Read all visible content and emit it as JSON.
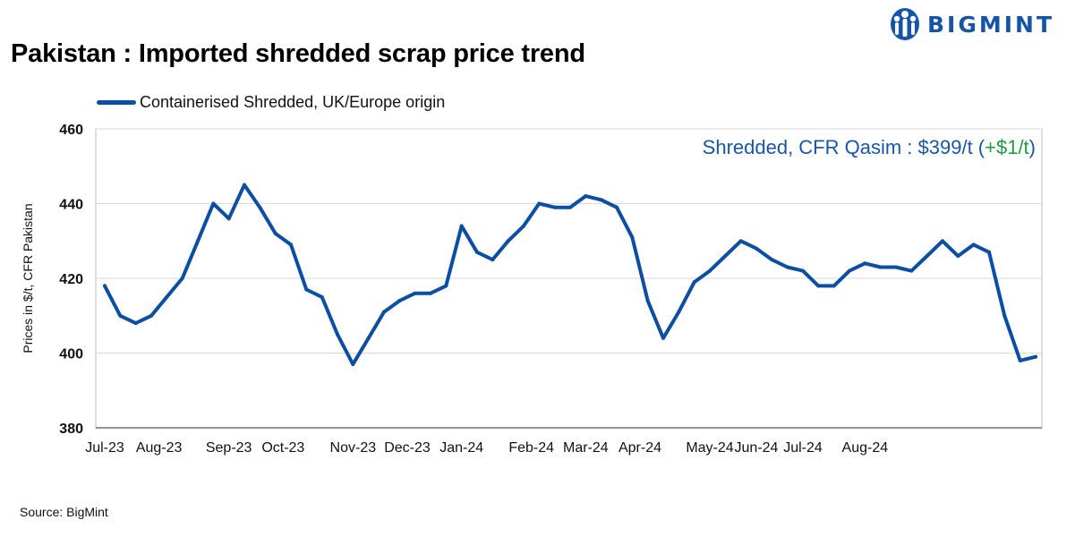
{
  "header": {
    "title": "Pakistan : Imported shredded scrap price trend",
    "brand": "BIGMINT"
  },
  "annotation": {
    "prefix": "Shredded, CFR Qasim : $399/t (",
    "change": "+$1/t",
    "suffix": ")"
  },
  "footer": {
    "source": "Source: BigMint"
  },
  "colors": {
    "line": "#0c4ea3",
    "brand": "#1655a5",
    "annotation": "#1a56a6",
    "positive": "#1c9a46",
    "grid": "#d9d9d9"
  },
  "chart_data": {
    "type": "line",
    "title": "Pakistan : Imported shredded scrap price trend",
    "xlabel": "",
    "ylabel": "Prices in $/t, CFR Pakistan",
    "ylim": [
      380,
      460
    ],
    "yticks": [
      380,
      400,
      420,
      440,
      460
    ],
    "grid": true,
    "legend_position": "top-left",
    "x_ticks": [
      {
        "label": "Jul-23",
        "index": 0
      },
      {
        "label": "Aug-23",
        "index": 3.5
      },
      {
        "label": "Sep-23",
        "index": 8
      },
      {
        "label": "Oct-23",
        "index": 11.5
      },
      {
        "label": "Nov-23",
        "index": 16
      },
      {
        "label": "Dec-23",
        "index": 19.5
      },
      {
        "label": "Jan-24",
        "index": 23
      },
      {
        "label": "Feb-24",
        "index": 27.5
      },
      {
        "label": "Mar-24",
        "index": 31
      },
      {
        "label": "Apr-24",
        "index": 34.5
      },
      {
        "label": "May-24",
        "index": 39
      },
      {
        "label": "Jun-24",
        "index": 42
      },
      {
        "label": "Jul-24",
        "index": 45
      },
      {
        "label": "Aug-24",
        "index": 49
      }
    ],
    "series": [
      {
        "name": "Containerised Shredded, UK/Europe origin",
        "values": [
          418,
          410,
          408,
          410,
          415,
          420,
          430,
          440,
          436,
          445,
          439,
          432,
          429,
          417,
          415,
          405,
          397,
          404,
          411,
          414,
          416,
          416,
          418,
          434,
          427,
          425,
          430,
          434,
          440,
          439,
          439,
          442,
          441,
          439,
          431,
          414,
          404,
          411,
          419,
          422,
          426,
          430,
          428,
          425,
          423,
          422,
          418,
          418,
          422,
          424,
          423,
          423,
          422,
          426,
          430,
          426,
          429,
          427,
          410,
          398,
          399
        ]
      }
    ]
  }
}
